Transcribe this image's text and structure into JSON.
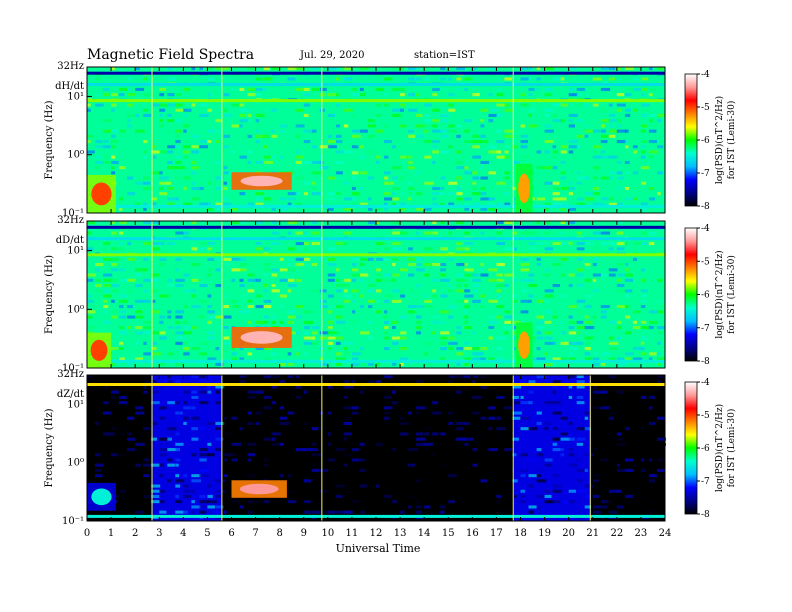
{
  "header": {
    "title": "Magnetic  Field  Spectra",
    "date": "Jul.  29, 2020",
    "station": "station=IST"
  },
  "colors": {
    "colormap": [
      "#000000",
      "#00008b",
      "#0000ff",
      "#00bfff",
      "#00ffcc",
      "#00ff00",
      "#ffff00",
      "#ff7f00",
      "#ff0000",
      "#ff9999",
      "#ffffff"
    ]
  },
  "chart_data": {
    "type": "heatmap",
    "xlabel": "Universal Time",
    "xlim": [
      0,
      24
    ],
    "x_ticks": [
      "0",
      "1",
      "2",
      "3",
      "4",
      "5",
      "6",
      "7",
      "8",
      "9",
      "10",
      "11",
      "12",
      "13",
      "14",
      "15",
      "16",
      "17",
      "18",
      "19",
      "20",
      "21",
      "22",
      "23",
      "24"
    ],
    "y_scale": "log",
    "ylim_hz": [
      0.1,
      32
    ],
    "colorbar": {
      "label_line1": "log(PSD)(nT^2/Hz)",
      "label_line2": "for IST (Lemi-30)",
      "range": [
        -8,
        -4
      ],
      "ticks": [
        "-4",
        "-5",
        "-6",
        "-7",
        "-8"
      ]
    },
    "panels": [
      {
        "component": "dH/dt",
        "ylabel": "Frequency  (Hz)",
        "top_label": "32Hz",
        "y_ticks": [
          "10¹",
          "10⁰",
          "10⁻¹"
        ],
        "background_level": -6.3,
        "line_features": [
          {
            "freq_hz": 25,
            "level": -7.5
          },
          {
            "freq_hz": 16,
            "level": -6.6
          },
          {
            "freq_hz": 8.5,
            "level": -5.8
          },
          {
            "freq_hz": 0.13,
            "level": -6.5
          }
        ],
        "events": [
          {
            "t0": 6.0,
            "t1": 8.5,
            "f0": 0.25,
            "f1": 0.5,
            "level": -4.3
          },
          {
            "t0": 0.0,
            "t1": 1.2,
            "f0": 0.1,
            "f1": 0.45,
            "level": -5.0
          },
          {
            "t0": 17.8,
            "t1": 18.5,
            "f0": 0.1,
            "f1": 0.7,
            "level": -5.3
          }
        ],
        "vertical_lines_ut": [
          2.7,
          5.6,
          9.75,
          17.7
        ]
      },
      {
        "component": "dD/dt",
        "ylabel": "Frequency  (Hz)",
        "top_label": "32Hz",
        "y_ticks": [
          "10¹",
          "10⁰",
          "10⁻¹"
        ],
        "background_level": -6.3,
        "line_features": [
          {
            "freq_hz": 25,
            "level": -7.5
          },
          {
            "freq_hz": 16,
            "level": -6.6
          },
          {
            "freq_hz": 8.5,
            "level": -5.8
          },
          {
            "freq_hz": 0.13,
            "level": -6.5
          }
        ],
        "events": [
          {
            "t0": 6.0,
            "t1": 8.5,
            "f0": 0.22,
            "f1": 0.5,
            "level": -4.3
          },
          {
            "t0": 0.0,
            "t1": 1.0,
            "f0": 0.1,
            "f1": 0.4,
            "level": -5.0
          },
          {
            "t0": 17.8,
            "t1": 18.5,
            "f0": 0.1,
            "f1": 0.6,
            "level": -5.3
          }
        ],
        "vertical_lines_ut": [
          2.7,
          5.6,
          9.75,
          17.7
        ]
      },
      {
        "component": "dZ/dt",
        "ylabel": "Frequency  (Hz)",
        "top_label": "32Hz",
        "y_ticks": [
          "10¹",
          "10⁰",
          "10⁻¹"
        ],
        "background_level": -8.0,
        "line_features": [
          {
            "freq_hz": 22,
            "level": -5.5
          },
          {
            "freq_hz": 0.12,
            "level": -6.5
          }
        ],
        "blocks": [
          {
            "t0": 2.7,
            "t1": 5.6,
            "level": -7.3
          },
          {
            "t0": 17.7,
            "t1": 20.9,
            "level": -7.3
          }
        ],
        "events": [
          {
            "t0": 6.0,
            "t1": 8.3,
            "f0": 0.25,
            "f1": 0.5,
            "level": -4.4
          },
          {
            "t0": 0.0,
            "t1": 1.2,
            "f0": 0.15,
            "f1": 0.45,
            "level": -6.5
          }
        ],
        "vertical_lines_ut": [
          2.7,
          5.6,
          9.75,
          17.7,
          20.9
        ]
      }
    ]
  }
}
